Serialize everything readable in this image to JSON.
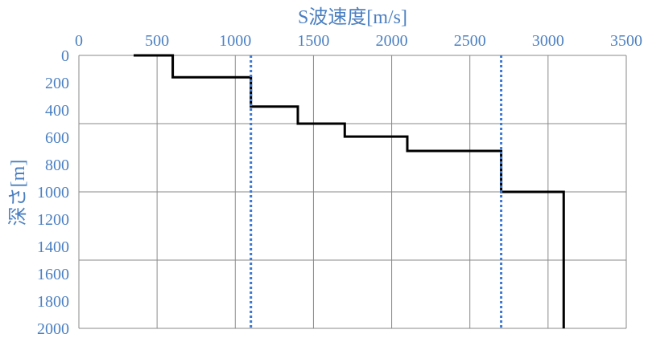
{
  "chart_data": {
    "type": "line",
    "title": "",
    "xlabel": "S波速度[m/s]",
    "ylabel": "深さ[m]",
    "xlim": [
      0,
      3500
    ],
    "ylim": [
      0,
      2000
    ],
    "y_reversed": true,
    "x_axis_position": "top",
    "x_ticks": [
      0,
      500,
      1000,
      1500,
      2000,
      2500,
      3000,
      3500
    ],
    "y_ticks": [
      0,
      200,
      400,
      600,
      800,
      1000,
      1200,
      1400,
      1600,
      1800,
      2000
    ],
    "x_tick_labels": [
      "0",
      "500",
      "1000",
      "1500",
      "2000",
      "2500",
      "3000",
      "3500"
    ],
    "y_tick_labels": [
      "0",
      "200",
      "400",
      "600",
      "800",
      "1000",
      "1200",
      "1400",
      "1600",
      "1800",
      "2000"
    ],
    "vertical_gridlines": [
      500,
      1000,
      1500,
      2000,
      2500,
      3000,
      3500
    ],
    "horizontal_gridlines": [
      500,
      1000,
      1500
    ],
    "grid": true,
    "series": [
      {
        "style": "solid",
        "color": "#000000",
        "x": [
          350,
          600,
          600,
          1100,
          1100,
          1400,
          1400,
          1700,
          1700,
          2100,
          2100,
          2700,
          2700,
          3100,
          3100
        ],
        "y": [
          0,
          0,
          160,
          160,
          375,
          375,
          500,
          500,
          595,
          595,
          700,
          700,
          1000,
          1000,
          2000
        ]
      },
      {
        "style": "dotted",
        "color": "#3a78d4",
        "x": [
          1100,
          1100
        ],
        "y": [
          0,
          2000
        ]
      },
      {
        "style": "dotted",
        "color": "#3a78d4",
        "x": [
          2700,
          2700
        ],
        "y": [
          0,
          2000
        ]
      }
    ]
  }
}
